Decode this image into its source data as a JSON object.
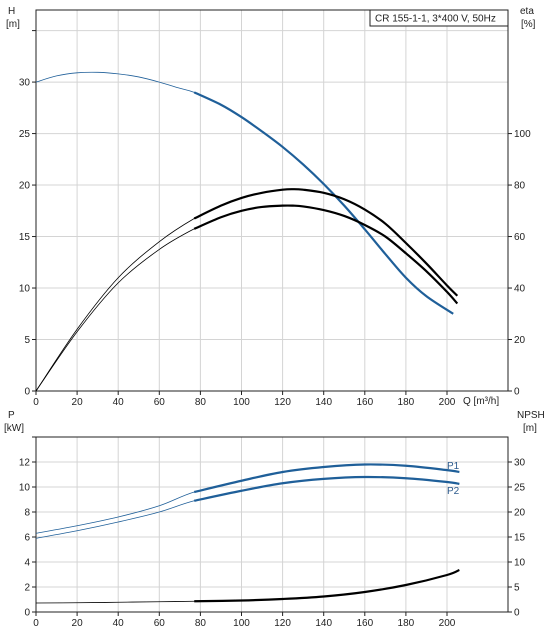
{
  "chart_data": [
    {
      "type": "line",
      "title": "CR 155-1-1, 3*400 V, 50Hz",
      "xlabel": "Q [m³/h]",
      "ylabel_left": "H\n[m]",
      "ylabel_right": "eta\n[%]",
      "x_ticks": [
        "0",
        "20",
        "40",
        "60",
        "80",
        "100",
        "120",
        "140",
        "160",
        "180",
        "200"
      ],
      "y_ticks_left": [
        "0",
        "5",
        "10",
        "15",
        "20",
        "25",
        "30"
      ],
      "y_ticks_right": [
        "0",
        "20",
        "40",
        "60",
        "80",
        "100"
      ],
      "xlim": [
        0,
        220
      ],
      "ylim_left": [
        0,
        37
      ],
      "ylim_right": [
        0,
        148
      ],
      "grid": true,
      "series": [
        {
          "axis": "left",
          "color": "#1f5f99",
          "x": [
            0,
            10,
            20,
            30,
            40,
            50,
            60,
            70,
            77,
            90,
            100,
            110,
            120,
            130,
            140,
            150,
            160,
            170,
            180,
            190,
            203
          ],
          "values": [
            30.0,
            30.6,
            30.9,
            30.95,
            30.8,
            30.5,
            30.0,
            29.4,
            29.0,
            27.8,
            26.6,
            25.2,
            23.7,
            22.0,
            20.1,
            18.0,
            15.7,
            13.3,
            11.0,
            9.2,
            7.5
          ],
          "operating_range": [
            77,
            203
          ]
        },
        {
          "axis": "right",
          "color": "#000000",
          "x": [
            0,
            20,
            40,
            60,
            77,
            90,
            100,
            110,
            120,
            125,
            130,
            140,
            150,
            160,
            170,
            180,
            190,
            200,
            205
          ],
          "values": [
            0,
            24,
            44,
            58,
            67,
            72,
            75,
            77,
            78.2,
            78.4,
            78.2,
            77,
            74.5,
            70.5,
            65,
            57.5,
            49.5,
            41,
            37
          ],
          "operating_range": [
            77,
            205
          ]
        },
        {
          "axis": "right",
          "color": "#000000",
          "x": [
            0,
            20,
            40,
            60,
            77,
            90,
            100,
            110,
            120,
            125,
            130,
            140,
            150,
            160,
            170,
            180,
            190,
            200,
            205
          ],
          "values": [
            0,
            23,
            42,
            55,
            63,
            67.5,
            70,
            71.5,
            72,
            72,
            71.7,
            70.3,
            68,
            64.5,
            60,
            53.5,
            46.5,
            38.5,
            34
          ],
          "operating_range": [
            77,
            205
          ]
        }
      ]
    },
    {
      "type": "line",
      "xlabel": "",
      "ylabel_left": "P\n[kW]",
      "ylabel_right": "NPSH\n[m]",
      "x_ticks": [
        "0",
        "20",
        "40",
        "60",
        "80",
        "100",
        "120",
        "140",
        "160",
        "180",
        "200"
      ],
      "y_ticks_left": [
        "0",
        "2",
        "4",
        "6",
        "8",
        "10",
        "12"
      ],
      "y_ticks_right": [
        "0",
        "5",
        "10",
        "15",
        "20",
        "25",
        "30"
      ],
      "xlim": [
        0,
        220
      ],
      "ylim_left": [
        0,
        14
      ],
      "ylim_right": [
        0,
        35
      ],
      "grid": true,
      "series": [
        {
          "name": "P1",
          "axis": "left",
          "color": "#1f5f99",
          "x": [
            0,
            20,
            40,
            60,
            77,
            100,
            120,
            140,
            160,
            180,
            200,
            206
          ],
          "values": [
            6.3,
            6.9,
            7.6,
            8.5,
            9.6,
            10.5,
            11.2,
            11.6,
            11.8,
            11.7,
            11.35,
            11.2
          ],
          "operating_range": [
            77,
            206
          ]
        },
        {
          "name": "P2",
          "axis": "left",
          "color": "#1f5f99",
          "x": [
            0,
            20,
            40,
            60,
            77,
            100,
            120,
            140,
            160,
            180,
            200,
            206
          ],
          "values": [
            5.9,
            6.5,
            7.2,
            8.0,
            8.9,
            9.7,
            10.3,
            10.65,
            10.8,
            10.7,
            10.4,
            10.25
          ],
          "operating_range": [
            77,
            206
          ]
        },
        {
          "axis": "right",
          "color": "#000000",
          "x": [
            0,
            20,
            40,
            60,
            77,
            100,
            120,
            140,
            160,
            180,
            200,
            206
          ],
          "values": [
            1.8,
            1.85,
            1.95,
            2.05,
            2.15,
            2.3,
            2.6,
            3.1,
            4.0,
            5.4,
            7.4,
            8.4
          ],
          "operating_range": [
            77,
            206
          ]
        }
      ]
    }
  ]
}
